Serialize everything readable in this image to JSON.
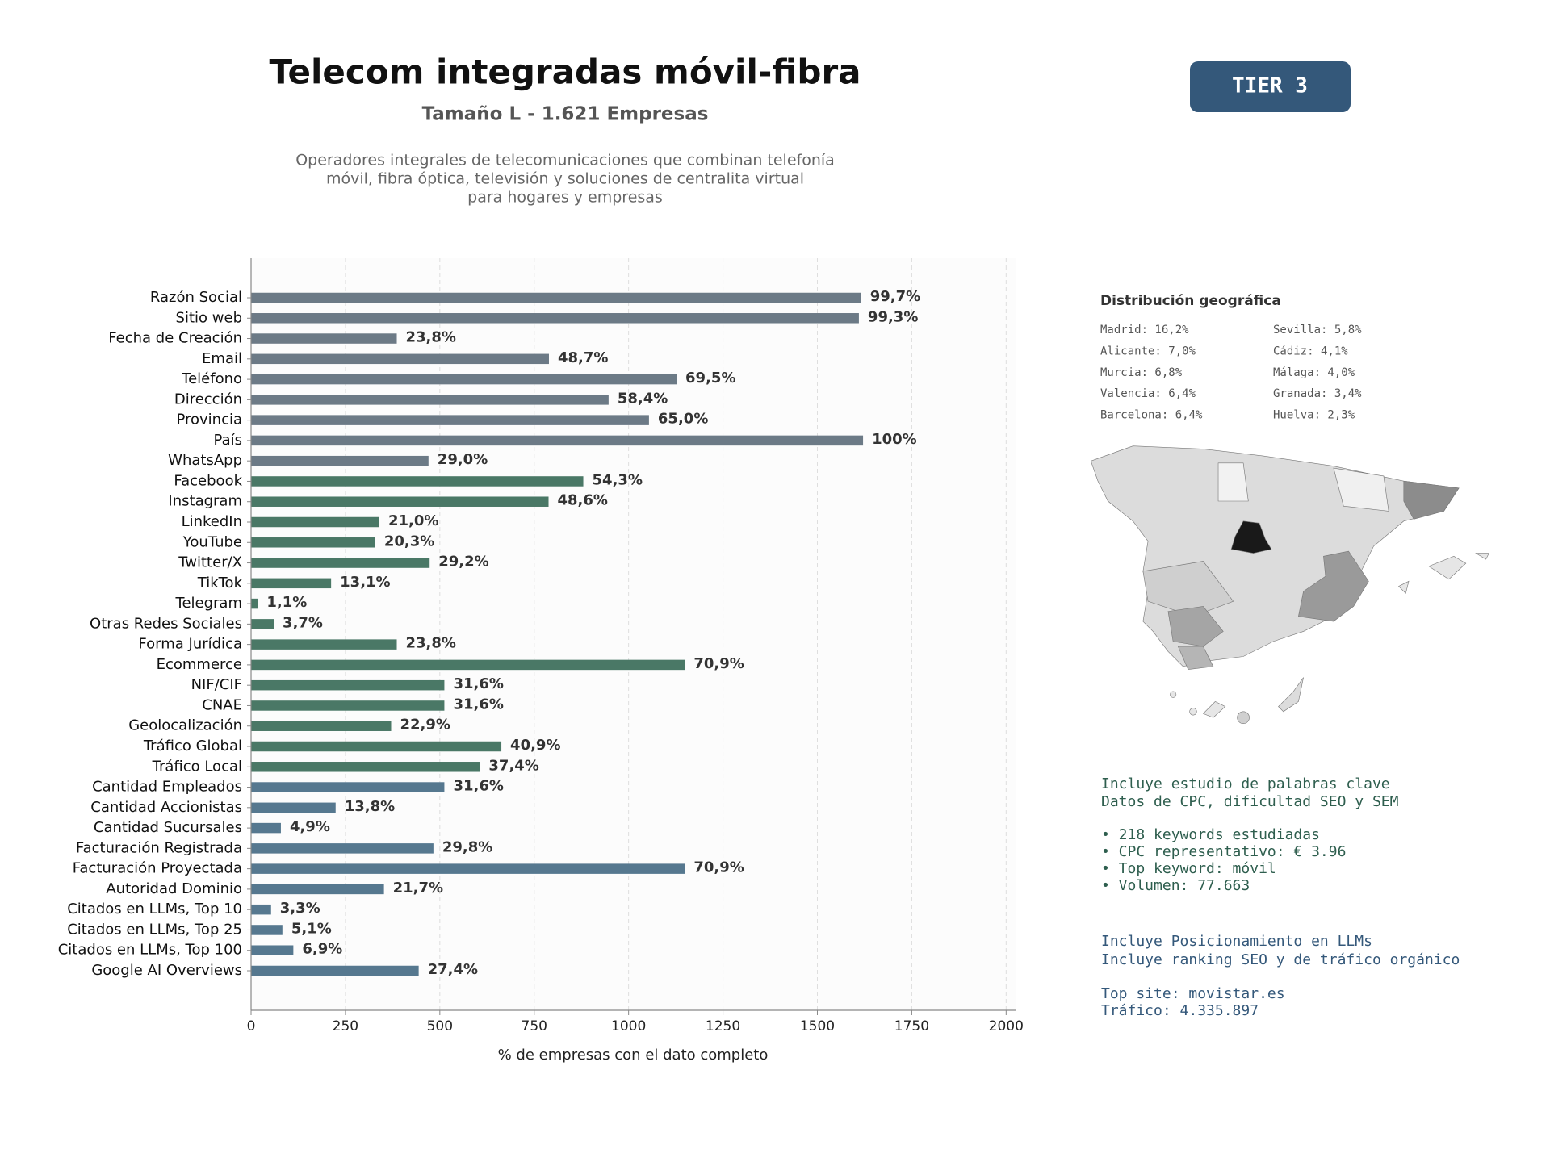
{
  "chart_data": {
    "type": "barh",
    "title": "Telecom integradas móvil-fibra",
    "subtitle": "Tamaño L - 1.621 Empresas",
    "description": [
      "Operadores integrales de telecomunicaciones que combinan telefonía",
      "móvil, fibra óptica, televisión y soluciones de centralita virtual",
      "para hogares y empresas"
    ],
    "xlabel": "% de empresas con el dato completo",
    "categories": [
      "Razón Social",
      "Sitio web",
      "Fecha de Creación",
      "Email",
      "Teléfono",
      "Dirección",
      "Provincia",
      "País",
      "WhatsApp",
      "Facebook",
      "Instagram",
      "LinkedIn",
      "YouTube",
      "Twitter/X",
      "TikTok",
      "Telegram",
      "Otras Redes Sociales",
      "Forma Jurídica",
      "Ecommerce",
      "NIF/CIF",
      "CNAE",
      "Geolocalización",
      "Tráfico Global",
      "Tráfico Local",
      "Cantidad Empleados",
      "Cantidad Accionistas",
      "Cantidad Sucursales",
      "Facturación Registrada",
      "Facturación Proyectada",
      "Autoridad Dominio",
      "Citados en LLMs, Top 10",
      "Citados en LLMs, Top 25",
      "Citados en LLMs, Top 100",
      "Google AI Overviews"
    ],
    "values": [
      1616,
      1610,
      386,
      789,
      1127,
      947,
      1054,
      1621,
      470,
      880,
      788,
      340,
      329,
      473,
      212,
      18,
      60,
      386,
      1149,
      512,
      512,
      371,
      663,
      606,
      512,
      224,
      79,
      483,
      1149,
      352,
      53,
      83,
      112,
      444
    ],
    "value_labels": [
      "99,7%",
      "99,3%",
      "23,8%",
      "48,7%",
      "69,5%",
      "58,4%",
      "65,0%",
      "100%",
      "29,0%",
      "54,3%",
      "48,6%",
      "21,0%",
      "20,3%",
      "29,2%",
      "13,1%",
      "1,1%",
      "3,7%",
      "23,8%",
      "70,9%",
      "31,6%",
      "31,6%",
      "22,9%",
      "40,9%",
      "37,4%",
      "31,6%",
      "13,8%",
      "4,9%",
      "29,8%",
      "70,9%",
      "21,7%",
      "3,3%",
      "5,1%",
      "6,9%",
      "27,4%"
    ],
    "colors": [
      "#6c7a86",
      "#6c7a86",
      "#6c7a86",
      "#6c7a86",
      "#6c7a86",
      "#6c7a86",
      "#6c7a86",
      "#6c7a86",
      "#6c7a86",
      "#4a7866",
      "#4a7866",
      "#4a7866",
      "#4a7866",
      "#4a7866",
      "#4a7866",
      "#4a7866",
      "#4a7866",
      "#4a7866",
      "#4a7866",
      "#4a7866",
      "#4a7866",
      "#4a7866",
      "#4a7866",
      "#4a7866",
      "#56788f",
      "#56788f",
      "#56788f",
      "#56788f",
      "#56788f",
      "#56788f",
      "#56788f",
      "#56788f",
      "#56788f",
      "#56788f"
    ],
    "xlim": [
      0,
      2025
    ],
    "xticks": [
      0,
      250,
      500,
      750,
      1000,
      1250,
      1500,
      1750,
      2000
    ],
    "grid": true
  },
  "badge": "TIER 3",
  "geo": {
    "title": "Distribución geográfica",
    "items": [
      "Madrid: 16,2%",
      "Sevilla: 5,8%",
      "Alicante: 7,0%",
      "Cádiz: 4,1%",
      "Murcia: 6,8%",
      "Málaga: 4,0%",
      "Valencia: 6,4%",
      "Granada: 3,4%",
      "Barcelona: 6,4%",
      "Huelva: 2,3%"
    ]
  },
  "keywords": [
    "Incluye estudio de palabras clave",
    "Datos de CPC, dificultad SEO y SEM",
    "• 218 keywords estudiadas",
    "• CPC representativo: € 3.96",
    "• Top keyword: móvil",
    "• Volumen: 77.663"
  ],
  "llm": [
    "Incluye Posicionamiento en LLMs",
    "Incluye ranking SEO y de tráfico orgánico",
    "Top site: movistar.es",
    "Tráfico: 4.335.897"
  ]
}
